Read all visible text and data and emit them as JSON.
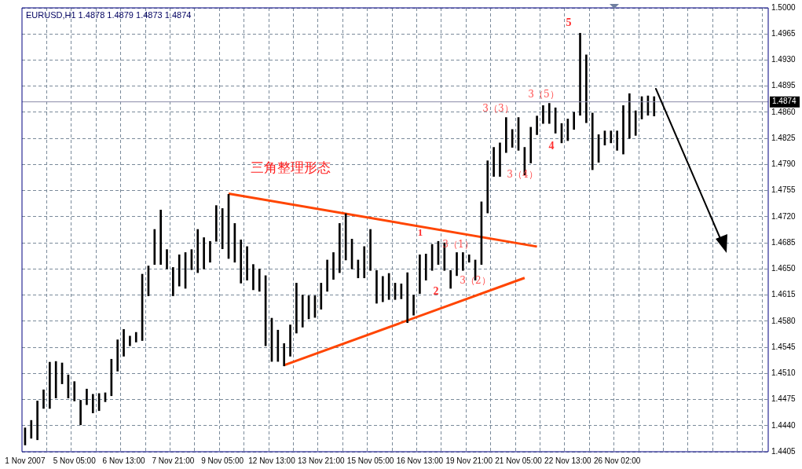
{
  "chart_data": {
    "type": "bar",
    "title": "EURUSD,H1 1.4878 1.4879 1.4873 1.4874",
    "categories": [
      "1 Nov 2007",
      null,
      null,
      null,
      null,
      null,
      null,
      null,
      "5 Nov 05:00",
      null,
      null,
      null,
      null,
      null,
      null,
      null,
      "6 Nov 13:00",
      null,
      null,
      null,
      null,
      null,
      null,
      null,
      "7 Nov 21:00",
      null,
      null,
      null,
      null,
      null,
      null,
      null,
      "9 Nov 05:00",
      null,
      null,
      null,
      null,
      null,
      null,
      null,
      "12 Nov 13:00",
      null,
      null,
      null,
      null,
      null,
      null,
      null,
      "13 Nov 21:00",
      null,
      null,
      null,
      null,
      null,
      null,
      null,
      "15 Nov 05:00",
      null,
      null,
      null,
      null,
      null,
      null,
      null,
      "16 Nov 13:00",
      null,
      null,
      null,
      null,
      null,
      null,
      null,
      "19 Nov 21:00",
      null,
      null,
      null,
      null,
      null,
      null,
      null,
      "21 Nov 05:00",
      null,
      null,
      null,
      null,
      null,
      null,
      null,
      "22 Nov 13:00",
      null,
      null,
      null,
      null,
      null,
      null,
      null,
      "26 Nov 02:00",
      null,
      null,
      null,
      null,
      null,
      null,
      null,
      null,
      null,
      null,
      null,
      null,
      null,
      null,
      null,
      null,
      null,
      null,
      null,
      null,
      null,
      null,
      null,
      null
    ],
    "series": [
      {
        "color": "#000000",
        "base": [
          1.4414,
          1.4423,
          1.4421,
          1.4463,
          1.4463,
          1.4477,
          1.4496,
          1.4477,
          1.4473,
          1.4441,
          1.4468,
          1.4457,
          1.446,
          1.4472,
          1.448,
          1.4513,
          1.4533,
          1.4547,
          1.4552,
          1.4554,
          1.4614,
          1.4656,
          1.4656,
          1.465,
          1.4614,
          1.4627,
          1.4624,
          1.4649,
          1.4645,
          1.465,
          1.4659,
          1.4687,
          1.4677,
          1.4664,
          1.4659,
          1.4631,
          1.4635,
          1.4622,
          1.462,
          1.4547,
          1.4526,
          1.4526,
          1.452,
          1.4533,
          1.4564,
          1.4572,
          1.4583,
          1.4585,
          1.4596,
          1.462,
          1.4636,
          1.4645,
          1.4662,
          1.465,
          1.4638,
          1.4638,
          1.4648,
          1.4604,
          1.4606,
          1.4609,
          1.4609,
          1.461,
          1.4578,
          1.4588,
          1.4617,
          1.4635,
          1.4648,
          1.4656,
          1.4648,
          1.4624,
          1.4641,
          1.4648,
          1.4659,
          1.4635,
          1.4656,
          1.4725,
          1.4774,
          1.4774,
          1.4806,
          1.4813,
          1.4809,
          1.4776,
          1.4792,
          1.483,
          1.4845,
          1.4845,
          1.4832,
          1.4819,
          1.4822,
          1.4837,
          1.4856,
          1.4846,
          1.4783,
          1.4793,
          1.4816,
          1.4819,
          1.4809,
          1.4804,
          1.4825,
          1.4829,
          1.4851,
          1.4856,
          1.4855,
          null,
          null,
          null,
          null,
          null,
          null,
          null,
          null,
          null,
          null,
          null,
          null,
          null,
          null,
          null,
          null,
          null,
          null
        ],
        "values": [
          0.0023,
          0.0024,
          0.0052,
          0.0025,
          0.0062,
          0.0049,
          0.0028,
          0.0031,
          0.0026,
          0.0033,
          0.0021,
          0.0025,
          0.0023,
          0.0012,
          0.0049,
          0.0042,
          0.0036,
          0.0013,
          0.0013,
          0.0089,
          0.004,
          0.0047,
          0.0073,
          0.0026,
          0.0038,
          0.0042,
          0.0048,
          0.0027,
          0.0058,
          0.0042,
          0.0028,
          0.0048,
          0.0054,
          0.0086,
          0.0052,
          0.0058,
          0.0045,
          0.0034,
          0.003,
          0.0094,
          0.0058,
          0.0042,
          0.003,
          0.0042,
          0.0067,
          0.0043,
          0.0031,
          0.0029,
          0.0035,
          0.0042,
          0.0036,
          0.0066,
          0.0062,
          0.004,
          0.0024,
          0.0042,
          0.0055,
          0.0044,
          0.0034,
          0.0035,
          0.0022,
          0.002,
          0.0067,
          0.0027,
          0.0052,
          0.0035,
          0.0035,
          0.0031,
          0.0037,
          0.0024,
          0.0031,
          0.0024,
          0.001,
          0.0027,
          0.0084,
          0.007,
          0.0039,
          0.0045,
          0.0047,
          0.0024,
          0.0044,
          0.0037,
          0.0048,
          0.0025,
          0.0024,
          0.0027,
          0.0034,
          0.0026,
          0.0029,
          0.0023,
          0.011,
          0.0091,
          0.0076,
          0.0037,
          0.0019,
          0.0016,
          0.0026,
          0.0065,
          0.006,
          0.0033,
          0.003,
          0.0026,
          0.0026,
          null,
          null,
          null,
          null,
          null,
          null,
          null,
          null,
          null,
          null,
          null,
          null,
          null,
          null,
          null,
          null,
          null,
          null
        ]
      },
      {
        "type": "line",
        "color": "#ff4500",
        "values": [
          null,
          null,
          null,
          null,
          null,
          null,
          null,
          null,
          null,
          null,
          null,
          null,
          null,
          null,
          null,
          null,
          null,
          null,
          null,
          null,
          null,
          null,
          null,
          null,
          null,
          null,
          null,
          null,
          null,
          null,
          null,
          null,
          null,
          1.4751,
          null,
          null,
          null,
          null,
          null,
          null,
          null,
          null,
          null,
          null,
          null,
          null,
          null,
          null,
          null,
          null,
          null,
          null,
          null,
          null,
          null,
          null,
          null,
          null,
          null,
          null,
          null,
          null,
          null,
          null,
          null,
          null,
          null,
          null,
          null,
          null,
          null,
          null,
          null,
          null,
          null,
          null,
          null,
          null,
          null,
          null,
          null,
          null,
          null,
          1.468,
          null,
          null,
          null,
          null,
          null,
          null,
          null,
          null,
          null,
          null,
          null,
          null,
          null,
          null,
          null,
          null,
          null,
          null,
          null,
          null,
          null,
          null,
          null,
          null,
          null,
          null,
          null,
          null,
          null,
          null,
          null,
          null,
          null,
          null,
          null,
          null,
          null
        ]
      },
      {
        "type": "line",
        "color": "#ff4500",
        "values": [
          null,
          null,
          null,
          null,
          null,
          null,
          null,
          null,
          null,
          null,
          null,
          null,
          null,
          null,
          null,
          null,
          null,
          null,
          null,
          null,
          null,
          null,
          null,
          null,
          null,
          null,
          null,
          null,
          null,
          null,
          null,
          null,
          null,
          null,
          null,
          null,
          null,
          null,
          null,
          null,
          null,
          null,
          1.4521,
          null,
          null,
          null,
          null,
          null,
          null,
          null,
          null,
          null,
          null,
          null,
          null,
          null,
          null,
          null,
          null,
          null,
          null,
          null,
          null,
          null,
          null,
          null,
          null,
          null,
          null,
          null,
          null,
          null,
          null,
          null,
          null,
          null,
          null,
          null,
          null,
          null,
          null,
          1.4638,
          null,
          null,
          null,
          null,
          null,
          null,
          null,
          null,
          null,
          null,
          null,
          null,
          null,
          null,
          null,
          null,
          null,
          null,
          null,
          null,
          null,
          null,
          null,
          null,
          null,
          null,
          null,
          null,
          null,
          null,
          null,
          null,
          null,
          null,
          null,
          null,
          null,
          null,
          null
        ]
      }
    ],
    "ylim": [
      1.4405,
      1.5
    ],
    "yticks": [
      {
        "value": 1.4405,
        "label": "1.4405"
      },
      {
        "value": 1.444,
        "label": "1.4440"
      },
      {
        "value": 1.4475,
        "label": "1.4475"
      },
      {
        "value": 1.451,
        "label": "1.4510"
      },
      {
        "value": 1.4545,
        "label": "1.4545"
      },
      {
        "value": 1.458,
        "label": "1.4580"
      },
      {
        "value": 1.4615,
        "label": "1.4615"
      },
      {
        "value": 1.465,
        "label": "1.4650"
      },
      {
        "value": 1.4685,
        "label": "1.4685"
      },
      {
        "value": 1.472,
        "label": "1.4720"
      },
      {
        "value": 1.4755,
        "label": "1.4755"
      },
      {
        "value": 1.479,
        "label": "1.4790"
      },
      {
        "value": 1.4825,
        "label": "1.4825"
      },
      {
        "value": 1.486,
        "label": "1.4860"
      },
      {
        "value": 1.4895,
        "label": "1.4895"
      },
      {
        "value": 1.493,
        "label": "1.4930"
      },
      {
        "value": 1.4965,
        "label": "1.4965"
      },
      {
        "value": 1.5,
        "label": "1.5000"
      }
    ],
    "grid": true,
    "ref_lines": [
      {
        "axis": "y",
        "value": 1.4874,
        "label": "1.4874",
        "color": "#8a8aa8"
      }
    ],
    "annotations": [
      "三角整理形态",
      "1",
      "2",
      "3（1）",
      "3（2）",
      "3（3）",
      "3（4）",
      "3（5）",
      "4",
      "5"
    ]
  }
}
